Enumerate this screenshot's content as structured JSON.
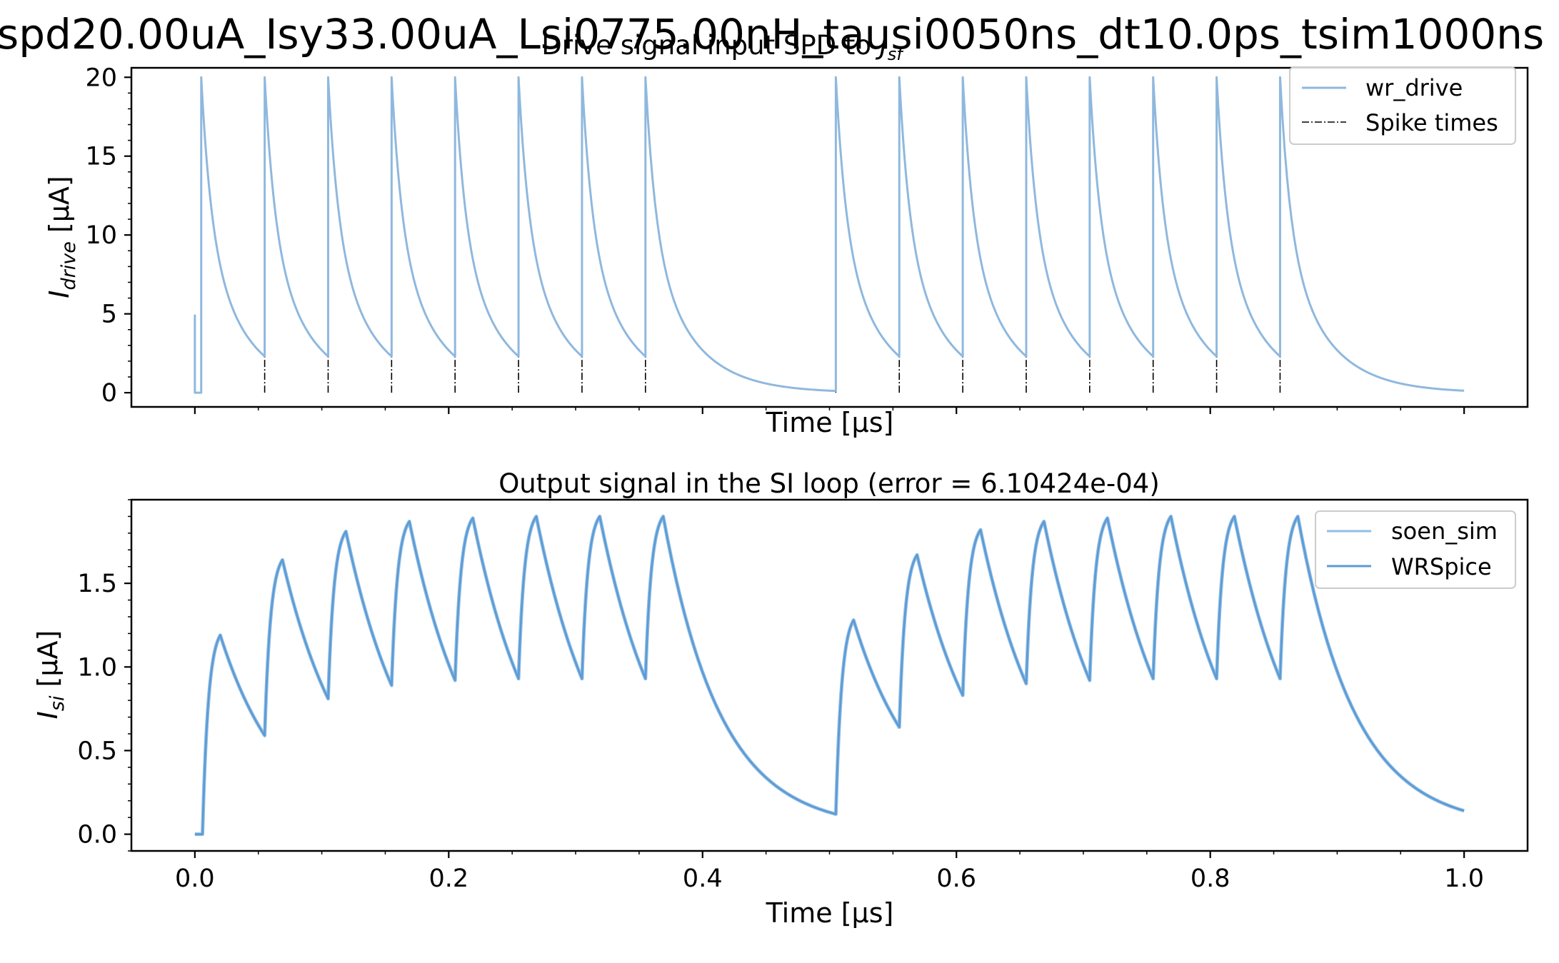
{
  "suptitle": "spd20.00uA_Isy33.00uA_Lsi0775.00nH_tausi0050ns_dt10.0ps_tsim1000ns",
  "colors": {
    "wr_drive": "#8fb8de",
    "soen_sim": "#92bde4",
    "wrspice": "#5b9bd5",
    "spike": "#000000"
  },
  "chart_data": [
    {
      "type": "line",
      "title": "Drive signal input SPD to J_sf",
      "title_parts": {
        "main": "Drive signal input SPD to ",
        "math": "J",
        "sub": "sf"
      },
      "xlabel": "Time [μs]",
      "ylabel": "I_drive [μA]",
      "ylabel_parts": {
        "main": "I",
        "sub": "drive",
        "unit": " [μA]"
      },
      "xlim": [
        -0.05,
        1.05
      ],
      "ylim": [
        -0.9,
        20.6
      ],
      "yticks": [
        "0",
        "5",
        "10",
        "15",
        "20"
      ],
      "ytick_values": [
        0,
        5,
        10,
        15,
        20
      ],
      "xtick_values": [
        0,
        0.2,
        0.4,
        0.6,
        0.8,
        1.0
      ],
      "xticklabels_visible": false,
      "legend": {
        "placement": "top-right",
        "entries": [
          "wr_drive",
          "Spike times"
        ]
      },
      "series": [
        {
          "name": "wr_drive",
          "style": "solid",
          "model": "spd_drive",
          "peak": 20,
          "tau_fast": 0.008,
          "tau_slow": 0.033,
          "baseline_pulse": [
            0.0,
            4.9
          ]
        },
        {
          "name": "Spike times",
          "style": "dashdot",
          "x": [
            0.005,
            0.055,
            0.105,
            0.155,
            0.205,
            0.255,
            0.305,
            0.355,
            0.505,
            0.555,
            0.605,
            0.655,
            0.705,
            0.755,
            0.805,
            0.855
          ]
        }
      ]
    },
    {
      "type": "line",
      "title": "Output signal in the SI loop (error = 6.10424e-04)",
      "xlabel": "Time [μs]",
      "ylabel": "I_si [μA]",
      "ylabel_parts": {
        "main": "I",
        "sub": "si",
        "unit": " [μA]"
      },
      "xlim": [
        -0.05,
        1.05
      ],
      "ylim": [
        -0.1,
        2.0
      ],
      "yticks": [
        "0.0",
        "0.5",
        "1.0",
        "1.5"
      ],
      "ytick_values": [
        0,
        0.5,
        1.0,
        1.5
      ],
      "xticks": [
        "0.0",
        "0.2",
        "0.4",
        "0.6",
        "0.8",
        "1.0"
      ],
      "xtick_values": [
        0,
        0.2,
        0.4,
        0.6,
        0.8,
        1.0
      ],
      "legend": {
        "placement": "top-right",
        "entries": [
          "soen_sim",
          "WRSpice"
        ]
      },
      "series": [
        {
          "name": "soen_sim",
          "style": "solid"
        },
        {
          "name": "WRSpice",
          "style": "solid"
        }
      ],
      "points": [
        [
          0.0,
          0.0
        ],
        [
          0.006,
          0.0
        ],
        [
          0.02,
          1.19
        ],
        [
          0.055,
          0.59
        ],
        [
          0.069,
          1.64
        ],
        [
          0.105,
          0.81
        ],
        [
          0.119,
          1.81
        ],
        [
          0.155,
          0.89
        ],
        [
          0.169,
          1.87
        ],
        [
          0.205,
          0.92
        ],
        [
          0.219,
          1.89
        ],
        [
          0.255,
          0.93
        ],
        [
          0.269,
          1.9
        ],
        [
          0.305,
          0.93
        ],
        [
          0.319,
          1.9
        ],
        [
          0.355,
          0.93
        ],
        [
          0.369,
          1.9
        ],
        [
          0.505,
          0.12
        ],
        [
          0.519,
          1.28
        ],
        [
          0.555,
          0.64
        ],
        [
          0.569,
          1.67
        ],
        [
          0.605,
          0.83
        ],
        [
          0.619,
          1.82
        ],
        [
          0.655,
          0.9
        ],
        [
          0.669,
          1.87
        ],
        [
          0.705,
          0.92
        ],
        [
          0.719,
          1.89
        ],
        [
          0.755,
          0.93
        ],
        [
          0.769,
          1.9
        ],
        [
          0.805,
          0.93
        ],
        [
          0.819,
          1.9
        ],
        [
          0.855,
          0.93
        ],
        [
          0.869,
          1.9
        ],
        [
          1.0,
          0.14
        ]
      ]
    }
  ]
}
